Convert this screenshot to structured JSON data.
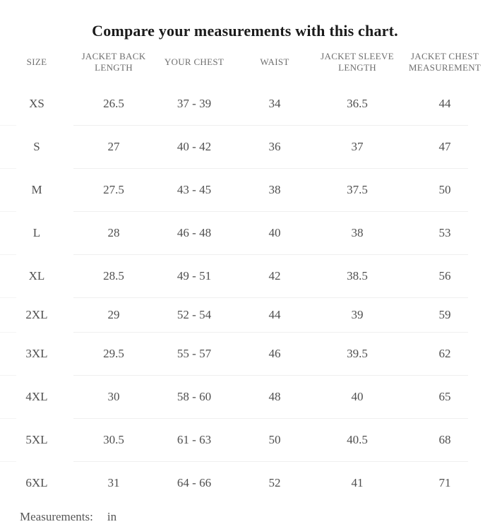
{
  "title": "Compare your measurements with this chart.",
  "table": {
    "columns": [
      "SIZE",
      "JACKET BACK LENGTH",
      "YOUR CHEST",
      "WAIST",
      "JACKET SLEEVE LENGTH",
      "JACKET CHEST MEASUREMENT"
    ],
    "rows": [
      {
        "cells": [
          "XS",
          "26.5",
          "37 - 39",
          "34",
          "36.5",
          "44"
        ]
      },
      {
        "cells": [
          "S",
          "27",
          "40 - 42",
          "36",
          "37",
          "47"
        ]
      },
      {
        "cells": [
          "M",
          "27.5",
          "43 - 45",
          "38",
          "37.5",
          "50"
        ]
      },
      {
        "cells": [
          "L",
          "28",
          "46 - 48",
          "40",
          "38",
          "53"
        ]
      },
      {
        "cells": [
          "XL",
          "28.5",
          "49 - 51",
          "42",
          "38.5",
          "56"
        ]
      },
      {
        "cells": [
          "2XL",
          "29",
          "52 - 54",
          "44",
          "39",
          "59"
        ]
      },
      {
        "cells": [
          "3XL",
          "29.5",
          "55 - 57",
          "46",
          "39.5",
          "62"
        ]
      },
      {
        "cells": [
          "4XL",
          "30",
          "58 - 60",
          "48",
          "40",
          "65"
        ]
      },
      {
        "cells": [
          "5XL",
          "30.5",
          "61 - 63",
          "50",
          "40.5",
          "68"
        ]
      },
      {
        "cells": [
          "6XL",
          "31",
          "64 - 66",
          "52",
          "41",
          "71"
        ]
      }
    ]
  },
  "footer": {
    "label": "Measurements:",
    "unit": "in"
  },
  "colors": {
    "background": "#ffffff",
    "title_text": "#1b1b1b",
    "header_text": "#6e6e6e",
    "cell_text": "#4f4f4f",
    "divider": "#efefef"
  }
}
